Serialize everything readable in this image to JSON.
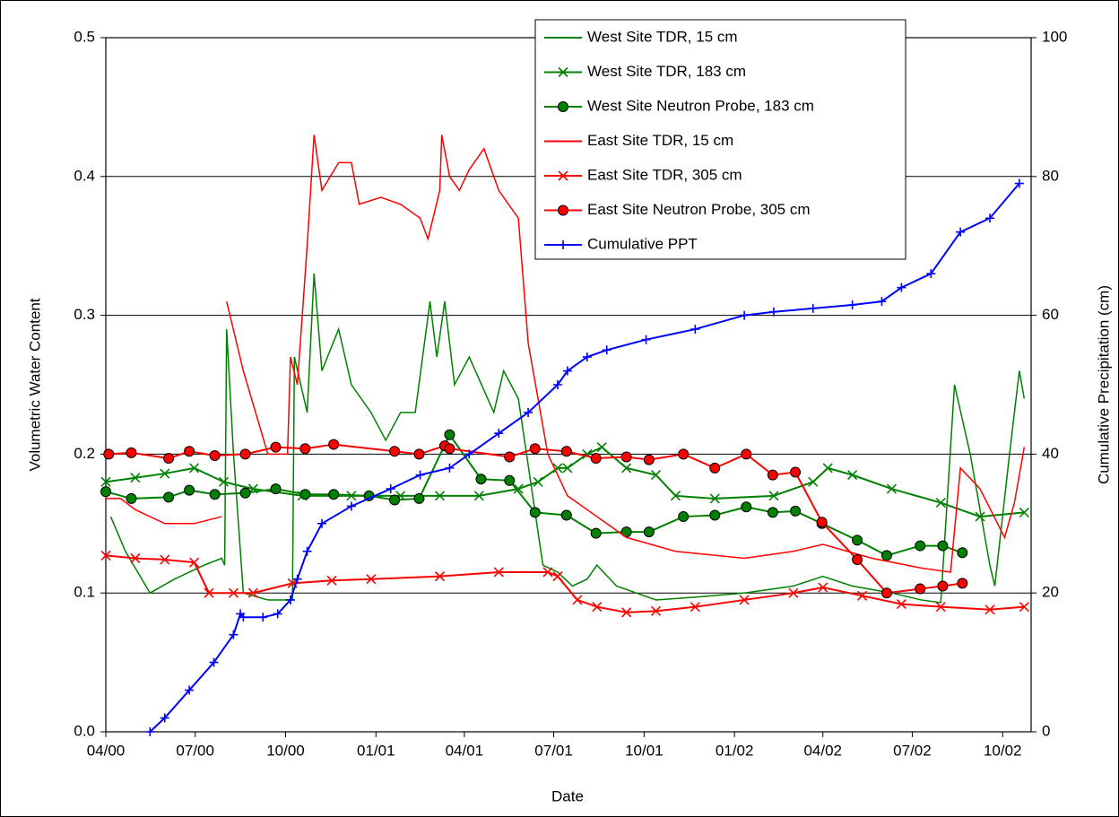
{
  "chart_data": {
    "type": "line",
    "xlabel": "Date",
    "ylabel": "Volumetric Water Content",
    "y2label": "Cumulative Precipitation (cm)",
    "xlim": [
      0,
      942
    ],
    "xticks": [
      {
        "value": 0,
        "label": "04/00"
      },
      {
        "value": 91,
        "label": "07/00"
      },
      {
        "value": 183,
        "label": "10/00"
      },
      {
        "value": 275,
        "label": "01/01"
      },
      {
        "value": 365,
        "label": "04/01"
      },
      {
        "value": 456,
        "label": "07/01"
      },
      {
        "value": 548,
        "label": "10/01"
      },
      {
        "value": 640,
        "label": "01/02"
      },
      {
        "value": 730,
        "label": "04/02"
      },
      {
        "value": 821,
        "label": "07/02"
      },
      {
        "value": 913,
        "label": "10/02"
      }
    ],
    "ylim": [
      0,
      0.5
    ],
    "yticks": [
      {
        "value": 0,
        "label": "0.0"
      },
      0.1,
      0.2,
      0.3,
      0.4,
      0.5
    ],
    "y2lim": [
      0,
      100
    ],
    "y2ticks": [
      0,
      20,
      40,
      60,
      80,
      100
    ],
    "grid": true,
    "legend": "top",
    "series": [
      {
        "name": "West Site TDR, 15 cm",
        "color": "#008000",
        "marker": "none",
        "x": [
          5,
          20,
          45,
          70,
          100,
          118,
          121,
          123,
          130,
          140,
          165,
          190,
          192,
          205,
          212,
          220,
          237,
          250,
          270,
          285,
          300,
          315,
          330,
          337,
          345,
          355,
          370,
          395,
          405,
          420,
          445,
          460,
          475,
          490,
          500,
          520,
          540,
          560,
          600,
          650,
          700,
          730,
          760,
          800,
          830,
          850,
          864,
          880,
          900,
          905,
          920,
          930,
          935
        ],
        "values": [
          0.155,
          0.13,
          0.1,
          0.11,
          0.12,
          0.125,
          0.12,
          0.29,
          0.2,
          0.1,
          0.095,
          0.095,
          0.27,
          0.23,
          0.33,
          0.26,
          0.29,
          0.25,
          0.23,
          0.21,
          0.23,
          0.23,
          0.31,
          0.27,
          0.31,
          0.25,
          0.27,
          0.23,
          0.26,
          0.24,
          0.12,
          0.115,
          0.105,
          0.11,
          0.12,
          0.105,
          0.1,
          0.095,
          0.097,
          0.1,
          0.105,
          0.112,
          0.105,
          0.1,
          0.095,
          0.093,
          0.25,
          0.2,
          0.12,
          0.105,
          0.2,
          0.26,
          0.24
        ]
      },
      {
        "name": "West Site TDR, 183 cm",
        "color": "#008000",
        "marker": "x",
        "x": [
          0,
          30,
          60,
          90,
          120,
          150,
          200,
          250,
          300,
          340,
          380,
          420,
          440,
          460,
          470,
          490,
          505,
          530,
          560,
          580,
          620,
          680,
          720,
          735,
          760,
          800,
          850,
          890,
          935
        ],
        "values": [
          0.18,
          0.183,
          0.186,
          0.19,
          0.18,
          0.175,
          0.17,
          0.17,
          0.17,
          0.17,
          0.17,
          0.175,
          0.18,
          0.19,
          0.19,
          0.2,
          0.205,
          0.19,
          0.185,
          0.17,
          0.168,
          0.17,
          0.18,
          0.19,
          0.185,
          0.175,
          0.165,
          0.155,
          0.158
        ]
      },
      {
        "name": "West Site Neutron Probe, 183 cm",
        "color": "#008000",
        "marker": "circle",
        "x": [
          0,
          26,
          64,
          85,
          111,
          142,
          173,
          203,
          232,
          268,
          294,
          319,
          350,
          382,
          411,
          437,
          469,
          499,
          530,
          553,
          588,
          620,
          652,
          679,
          702,
          729,
          765,
          795,
          829,
          852,
          872
        ],
        "values": [
          0.173,
          0.168,
          0.169,
          0.174,
          0.171,
          0.172,
          0.175,
          0.171,
          0.171,
          0.17,
          0.167,
          0.168,
          0.214,
          0.182,
          0.181,
          0.158,
          0.156,
          0.143,
          0.144,
          0.144,
          0.155,
          0.156,
          0.162,
          0.158,
          0.159,
          0.15,
          0.138,
          0.127,
          0.134,
          0.134,
          0.129
        ]
      },
      {
        "name": "East Site TDR, 15 cm",
        "color": "#ff0000",
        "marker": "none",
        "x": [
          0,
          15,
          30,
          60,
          90,
          118,
          120,
          123,
          140,
          165,
          185,
          188,
          195,
          205,
          212,
          220,
          237,
          250,
          258,
          280,
          300,
          320,
          328,
          340,
          342,
          350,
          360,
          370,
          385,
          400,
          410,
          420,
          430,
          450,
          470,
          490,
          530,
          580,
          650,
          700,
          730,
          780,
          830,
          860,
          870,
          890,
          915,
          925,
          935
        ],
        "values": [
          0.168,
          0.168,
          0.16,
          0.15,
          0.15,
          0.155,
          null,
          0.31,
          0.26,
          0.2,
          0.2,
          0.27,
          0.25,
          0.35,
          0.43,
          0.39,
          0.41,
          0.41,
          0.38,
          0.385,
          0.38,
          0.37,
          0.355,
          0.39,
          0.43,
          0.4,
          0.39,
          0.405,
          0.42,
          0.39,
          0.38,
          0.37,
          0.28,
          0.2,
          0.17,
          0.16,
          0.14,
          0.13,
          0.125,
          0.13,
          0.135,
          0.125,
          0.118,
          0.115,
          0.19,
          0.175,
          0.14,
          0.165,
          0.205
        ]
      },
      {
        "name": "East Site TDR, 305 cm",
        "color": "#ff0000",
        "marker": "x",
        "x": [
          0,
          30,
          60,
          90,
          105,
          130,
          150,
          190,
          230,
          270,
          340,
          400,
          450,
          460,
          480,
          500,
          530,
          560,
          600,
          650,
          700,
          730,
          770,
          810,
          850,
          900,
          935
        ],
        "values": [
          0.127,
          0.125,
          0.124,
          0.122,
          0.1,
          0.1,
          0.1,
          0.107,
          0.109,
          0.11,
          0.112,
          0.115,
          0.115,
          0.112,
          0.095,
          0.09,
          0.086,
          0.087,
          0.09,
          0.095,
          0.1,
          0.104,
          0.098,
          0.092,
          0.09,
          0.088,
          0.09
        ]
      },
      {
        "name": "East Site Neutron Probe, 305 cm",
        "color": "#ff0000",
        "marker": "circle",
        "x": [
          3,
          26,
          64,
          85,
          111,
          142,
          173,
          203,
          232,
          294,
          319,
          345,
          350,
          411,
          437,
          469,
          499,
          530,
          553,
          588,
          620,
          652,
          679,
          702,
          729,
          765,
          795,
          829,
          852,
          872
        ],
        "values": [
          0.2,
          0.201,
          0.197,
          0.202,
          0.199,
          0.2,
          0.205,
          0.204,
          0.207,
          0.202,
          0.2,
          0.206,
          0.204,
          0.198,
          0.204,
          0.202,
          0.197,
          0.198,
          0.196,
          0.2,
          0.19,
          0.2,
          0.185,
          0.187,
          0.151,
          0.124,
          0.1,
          0.103,
          0.105,
          0.107
        ]
      },
      {
        "name": "Cumulative PPT",
        "color": "#0000ff",
        "marker": "plus",
        "axis": "y2",
        "x": [
          45,
          60,
          85,
          110,
          130,
          137,
          140,
          160,
          175,
          188,
          195,
          205,
          220,
          250,
          290,
          320,
          350,
          370,
          400,
          430,
          460,
          470,
          490,
          510,
          550,
          600,
          650,
          680,
          720,
          760,
          790,
          810,
          840,
          870,
          900,
          930
        ],
        "values": [
          0,
          2,
          6,
          10,
          14,
          17,
          16.5,
          16.5,
          17,
          19,
          22,
          26,
          30,
          32.5,
          35,
          37,
          38,
          40,
          43,
          46,
          50,
          52,
          54,
          55,
          56.5,
          58,
          60,
          60.5,
          61,
          61.5,
          62,
          64,
          66,
          72,
          74,
          79
        ]
      }
    ]
  }
}
